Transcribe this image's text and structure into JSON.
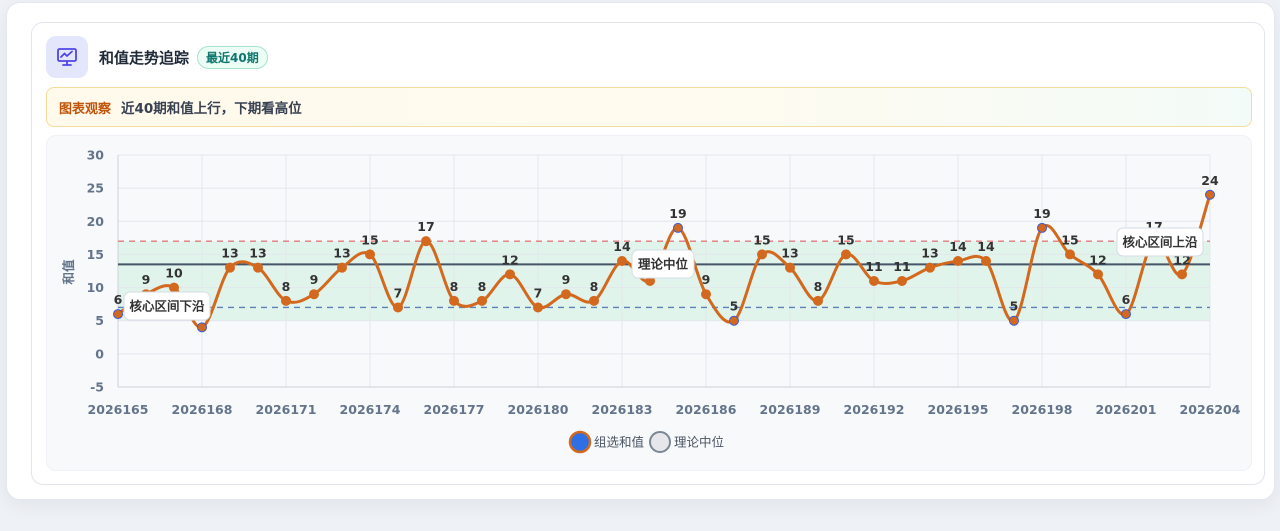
{
  "header": {
    "title": "和值走势追踪",
    "badge": "最近40期"
  },
  "note": {
    "label": "图表观察",
    "text": "近40期和值上行，下期看高位"
  },
  "colors": {
    "line": "#d2691e",
    "band": "#d9f2e6",
    "median_line": "#475569",
    "upper_dashed": "#e07a7a",
    "lower_dashed": "#5b7fb8",
    "legend_series": "#2f6fe5"
  },
  "chart_data": {
    "type": "line",
    "ylabel": "和值",
    "xlabel": "",
    "ylim": [
      -5,
      30
    ],
    "yticks": [
      -5,
      0,
      5,
      10,
      15,
      20,
      25,
      30
    ],
    "x": [
      2026165,
      2026166,
      2026167,
      2026168,
      2026169,
      2026170,
      2026171,
      2026172,
      2026173,
      2026174,
      2026175,
      2026176,
      2026177,
      2026178,
      2026179,
      2026180,
      2026181,
      2026182,
      2026183,
      2026184,
      2026185,
      2026186,
      2026187,
      2026188,
      2026189,
      2026190,
      2026191,
      2026192,
      2026193,
      2026194,
      2026195,
      2026196,
      2026197,
      2026198,
      2026199,
      2026200,
      2026201,
      2026202,
      2026203,
      2026204
    ],
    "xticks": [
      "2026165",
      "2026168",
      "2026171",
      "2026174",
      "2026177",
      "2026180",
      "2026183",
      "2026186",
      "2026189",
      "2026192",
      "2026195",
      "2026198",
      "2026201",
      "2026204"
    ],
    "series": [
      {
        "name": "组选和值",
        "values": [
          6,
          9,
          10,
          4,
          13,
          13,
          8,
          9,
          13,
          15,
          7,
          17,
          8,
          8,
          12,
          7,
          9,
          8,
          14,
          11,
          19,
          9,
          5,
          15,
          13,
          8,
          15,
          11,
          11,
          13,
          14,
          14,
          5,
          19,
          15,
          12,
          6,
          17,
          12,
          24
        ],
        "labels": [
          "6",
          "9",
          "10",
          "4",
          "13",
          "13",
          "8",
          "9",
          "13",
          "15",
          "7",
          "17",
          "8",
          "8",
          "12",
          "7",
          "9",
          "8",
          "14",
          "",
          "19",
          "9",
          "5",
          "15",
          "13",
          "8",
          "15",
          "11",
          "11",
          "13",
          "14",
          "14",
          "5",
          "19",
          "15",
          "12",
          "6",
          "17",
          "12",
          "24"
        ]
      }
    ],
    "reference_lines": [
      {
        "name": "理论中位",
        "value": 13.5,
        "label": "理论中位"
      },
      {
        "name": "核心区间上沿",
        "value": 17,
        "label": "核心区间上沿"
      },
      {
        "name": "核心区间下沿",
        "value": 7,
        "label": "核心区间下沿"
      }
    ],
    "band": {
      "from": 5,
      "to": 17
    },
    "grid": true,
    "legend": {
      "position": "bottom",
      "items": [
        "组选和值",
        "理论中位"
      ]
    }
  }
}
